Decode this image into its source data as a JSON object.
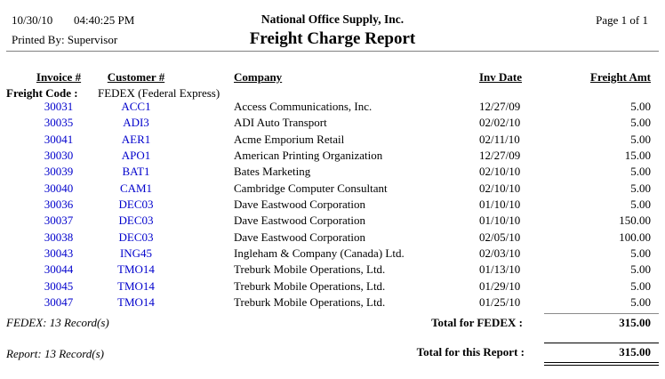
{
  "page": {
    "print_date": "10/30/10",
    "print_time": "04:40:25 PM",
    "printed_by": "Printed By: Supervisor",
    "company_name": "National Office Supply, Inc.",
    "report_title": "Freight Charge Report",
    "page_label": "Page 1 of 1"
  },
  "table": {
    "headers": [
      "Invoice #",
      "Customer #",
      "Company",
      "Inv Date",
      "Freight Amt"
    ],
    "group_header": {
      "label": "Freight Code :",
      "value": "FEDEX (Federal Express)"
    },
    "rows": [
      {
        "invoice": "30031",
        "customer": "ACC1",
        "company": "Access Communications, Inc.",
        "inv_date": "12/27/09",
        "freight_amt": "5.00"
      },
      {
        "invoice": "30035",
        "customer": "ADI3",
        "company": "ADI Auto Transport",
        "inv_date": "02/02/10",
        "freight_amt": "5.00"
      },
      {
        "invoice": "30041",
        "customer": "AER1",
        "company": "Acme Emporium Retail",
        "inv_date": "02/11/10",
        "freight_amt": "5.00"
      },
      {
        "invoice": "30030",
        "customer": "APO1",
        "company": "American Printing Organization",
        "inv_date": "12/27/09",
        "freight_amt": "15.00"
      },
      {
        "invoice": "30039",
        "customer": "BAT1",
        "company": "Bates Marketing",
        "inv_date": "02/10/10",
        "freight_amt": "5.00"
      },
      {
        "invoice": "30040",
        "customer": "CAM1",
        "company": "Cambridge Computer Consultant",
        "inv_date": "02/10/10",
        "freight_amt": "5.00"
      },
      {
        "invoice": "30036",
        "customer": "DEC03",
        "company": "Dave Eastwood Corporation",
        "inv_date": "01/10/10",
        "freight_amt": "5.00"
      },
      {
        "invoice": "30037",
        "customer": "DEC03",
        "company": "Dave Eastwood Corporation",
        "inv_date": "01/10/10",
        "freight_amt": "150.00"
      },
      {
        "invoice": "30038",
        "customer": "DEC03",
        "company": "Dave Eastwood Corporation",
        "inv_date": "02/05/10",
        "freight_amt": "100.00"
      },
      {
        "invoice": "30043",
        "customer": "ING45",
        "company": "Ingleham & Company (Canada) Ltd.",
        "inv_date": "02/03/10",
        "freight_amt": "5.00"
      },
      {
        "invoice": "30044",
        "customer": "TMO14",
        "company": "Treburk Mobile Operations, Ltd.",
        "inv_date": "01/13/10",
        "freight_amt": "5.00"
      },
      {
        "invoice": "30045",
        "customer": "TMO14",
        "company": "Treburk Mobile Operations, Ltd.",
        "inv_date": "01/29/10",
        "freight_amt": "5.00"
      },
      {
        "invoice": "30047",
        "customer": "TMO14",
        "company": "Treburk Mobile Operations, Ltd.",
        "inv_date": "01/25/10",
        "freight_amt": "5.00"
      }
    ]
  },
  "totals": {
    "group_record_count": "FEDEX: 13 Record(s)",
    "group_total_label": "Total for FEDEX :",
    "group_total_value": "315.00",
    "report_record_count": "Report: 13 Record(s)",
    "report_total_label": "Total for this Report :",
    "report_total_value": "315.00"
  },
  "colors": {
    "link_blue": "#0000CC",
    "rule_gray": "#808080",
    "text_black": "#000000"
  }
}
